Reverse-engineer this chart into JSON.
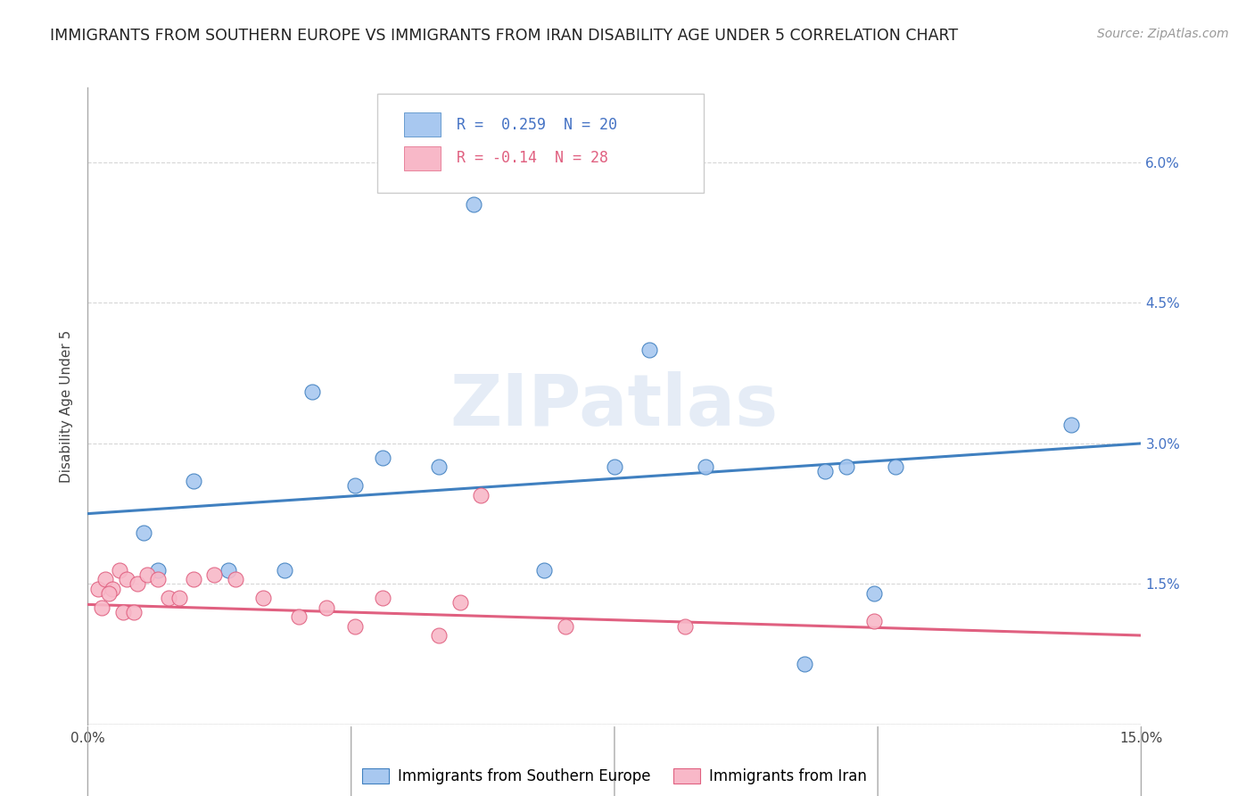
{
  "title": "IMMIGRANTS FROM SOUTHERN EUROPE VS IMMIGRANTS FROM IRAN DISABILITY AGE UNDER 5 CORRELATION CHART",
  "source": "Source: ZipAtlas.com",
  "ylabel": "Disability Age Under 5",
  "xlim": [
    0.0,
    15.0
  ],
  "ylim": [
    0.0,
    6.8
  ],
  "yticks": [
    0.0,
    1.5,
    3.0,
    4.5,
    6.0
  ],
  "ytick_labels": [
    "",
    "1.5%",
    "3.0%",
    "4.5%",
    "6.0%"
  ],
  "xticks": [
    0.0,
    3.75,
    7.5,
    11.25,
    15.0
  ],
  "xtick_labels": [
    "0.0%",
    "",
    "",
    "",
    "15.0%"
  ],
  "blue_R": 0.259,
  "blue_N": 20,
  "pink_R": -0.14,
  "pink_N": 28,
  "blue_color": "#A8C8F0",
  "pink_color": "#F8B8C8",
  "blue_line_color": "#4080C0",
  "pink_line_color": "#E06080",
  "background_color": "#FFFFFF",
  "grid_color": "#CCCCCC",
  "watermark_text": "ZIPatlas",
  "blue_line_y0": 2.25,
  "blue_line_y1": 3.0,
  "pink_line_y0": 1.28,
  "pink_line_y1": 0.95,
  "blue_x": [
    5.5,
    1.5,
    3.2,
    4.2,
    3.8,
    5.0,
    7.5,
    8.0,
    8.8,
    10.5,
    10.8,
    11.5,
    14.0,
    6.5,
    1.0,
    2.0,
    2.8,
    10.2,
    11.2,
    0.8
  ],
  "blue_y": [
    5.55,
    2.6,
    3.55,
    2.85,
    2.55,
    2.75,
    2.75,
    4.0,
    2.75,
    2.7,
    2.75,
    2.75,
    3.2,
    1.65,
    1.65,
    1.65,
    1.65,
    0.65,
    1.4,
    2.05
  ],
  "pink_x": [
    0.15,
    0.25,
    0.35,
    0.45,
    0.55,
    0.7,
    0.85,
    1.0,
    1.15,
    1.3,
    1.5,
    1.8,
    2.1,
    2.5,
    3.0,
    3.4,
    3.8,
    4.2,
    5.0,
    5.3,
    5.6,
    6.8,
    8.5,
    11.2,
    0.2,
    0.3,
    0.5,
    0.65
  ],
  "pink_y": [
    1.45,
    1.55,
    1.45,
    1.65,
    1.55,
    1.5,
    1.6,
    1.55,
    1.35,
    1.35,
    1.55,
    1.6,
    1.55,
    1.35,
    1.15,
    1.25,
    1.05,
    1.35,
    0.95,
    1.3,
    2.45,
    1.05,
    1.05,
    1.1,
    1.25,
    1.4,
    1.2,
    1.2
  ],
  "title_fontsize": 12.5,
  "axis_label_fontsize": 11,
  "tick_fontsize": 11,
  "legend_fontsize": 12,
  "source_fontsize": 10
}
